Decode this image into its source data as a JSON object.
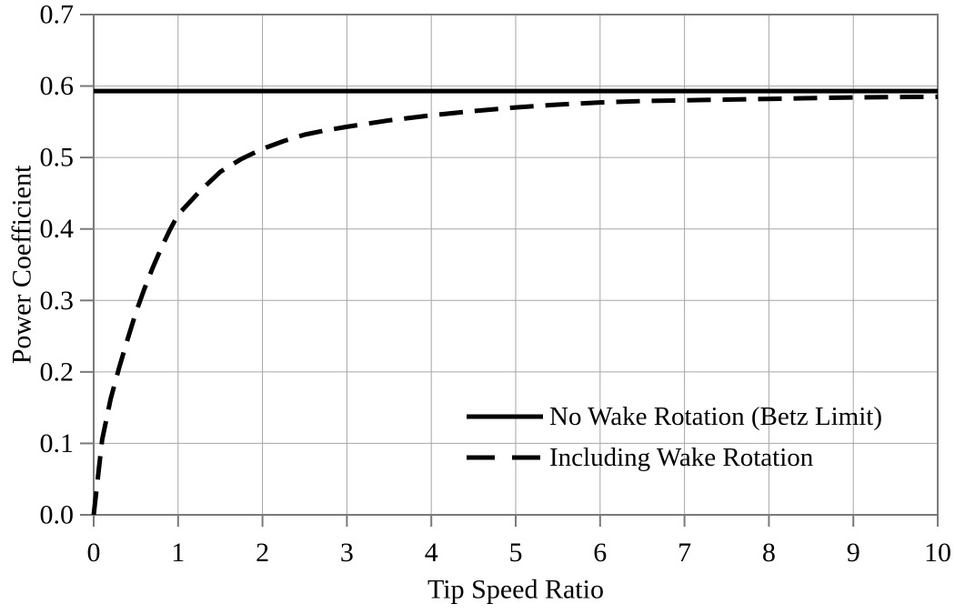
{
  "chart_data": {
    "type": "line",
    "title": "",
    "xlabel": "Tip Speed Ratio",
    "ylabel": "Power Coefficient",
    "xlim": [
      0,
      10
    ],
    "ylim": [
      0.0,
      0.7
    ],
    "x_ticks": [
      0,
      1,
      2,
      3,
      4,
      5,
      6,
      7,
      8,
      9,
      10
    ],
    "x_tick_labels": [
      "0",
      "1",
      "2",
      "3",
      "4",
      "5",
      "6",
      "7",
      "8",
      "9",
      "10"
    ],
    "y_ticks": [
      0.0,
      0.1,
      0.2,
      0.3,
      0.4,
      0.5,
      0.6,
      0.7
    ],
    "y_tick_labels": [
      "0.0",
      "0.1",
      "0.2",
      "0.3",
      "0.4",
      "0.5",
      "0.6",
      "0.7"
    ],
    "grid": true,
    "legend_position": "inside-bottom-right",
    "betz_limit_value": 0.593,
    "series": [
      {
        "name": "No Wake Rotation (Betz Limit)",
        "style": "solid",
        "color": "#000000",
        "x": [
          0,
          10
        ],
        "y": [
          0.593,
          0.593
        ]
      },
      {
        "name": "Including Wake Rotation",
        "style": "dashed",
        "color": "#000000",
        "x": [
          0,
          0.1,
          0.2,
          0.3,
          0.4,
          0.5,
          0.6,
          0.7,
          0.8,
          0.9,
          1.0,
          1.25,
          1.5,
          1.75,
          2.0,
          2.25,
          2.5,
          2.75,
          3.0,
          3.5,
          4.0,
          4.5,
          5.0,
          5.5,
          6.0,
          6.5,
          7.0,
          7.5,
          8.0,
          8.5,
          9.0,
          9.5,
          10.0
        ],
        "y": [
          0.0,
          0.105,
          0.162,
          0.205,
          0.245,
          0.283,
          0.316,
          0.346,
          0.373,
          0.398,
          0.42,
          0.452,
          0.48,
          0.498,
          0.512,
          0.523,
          0.532,
          0.538,
          0.543,
          0.552,
          0.559,
          0.565,
          0.57,
          0.574,
          0.577,
          0.579,
          0.58,
          0.581,
          0.582,
          0.583,
          0.584,
          0.5845,
          0.585
        ]
      }
    ],
    "colors": {
      "grid": "#a6a6a6",
      "frame": "#7a7a7a",
      "series": "#000000",
      "text": "#000000",
      "background": "#ffffff"
    }
  }
}
